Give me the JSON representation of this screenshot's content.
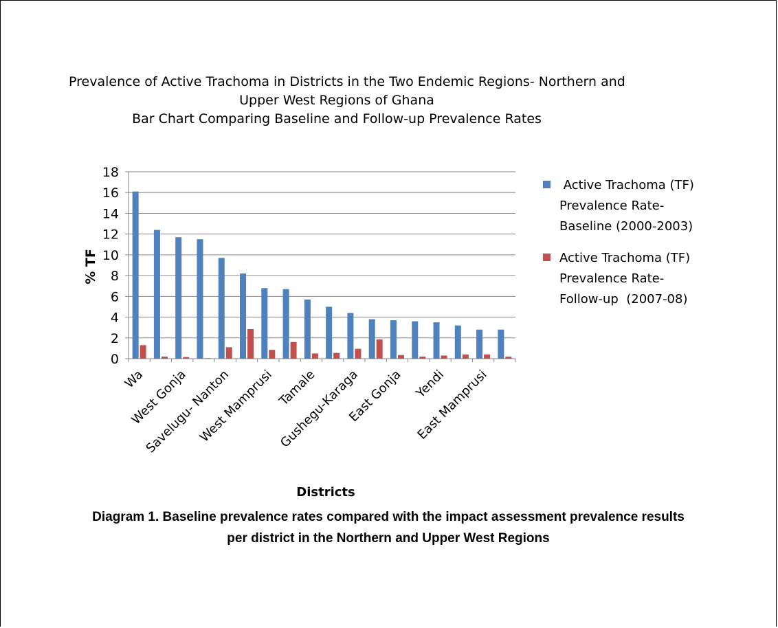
{
  "title_lines": [
    "Prevalence of Active Trachoma in Districts in the Two Endemic Regions- Northern and",
    "Upper West Regions of Ghana",
    "Bar Chart Comparing Baseline and Follow-up Prevalence Rates"
  ],
  "caption_lines": [
    "Diagram 1. Baseline prevalence rates compared with the impact assessment prevalence results",
    "per district in the Northern and Upper West Regions"
  ],
  "legend": {
    "items": [
      {
        "lines": [
          " Active Trachoma (TF)",
          "Prevalence Rate-",
          "Baseline (2000-2003)"
        ],
        "color": "#4F81BD"
      },
      {
        "lines": [
          "Active Trachoma (TF)",
          "Prevalence Rate-",
          "Follow-up  (2007-08)"
        ],
        "color": "#C0504D"
      }
    ]
  },
  "chart_data": {
    "type": "bar",
    "xlabel": "Districts",
    "ylabel": "% TF",
    "ylim": [
      0,
      18
    ],
    "yticks": [
      0,
      2,
      4,
      6,
      8,
      10,
      12,
      14,
      16,
      18
    ],
    "grid": true,
    "legend_position": "right",
    "category_labels_shown": [
      "Wa",
      "",
      "West Gonja",
      "",
      "Savelugu- Nanton",
      "",
      "West Mamprusi",
      "",
      "Tamale",
      "",
      "Gushegu-Karaga",
      "",
      "East Gonja",
      "",
      "Yendi",
      "",
      "East Mamprusi",
      ""
    ],
    "series": [
      {
        "values": [
          16.1,
          12.4,
          11.7,
          11.5,
          9.7,
          8.2,
          6.8,
          6.7,
          5.7,
          5.0,
          4.4,
          3.8,
          3.7,
          3.6,
          3.5,
          3.2,
          2.8,
          2.8
        ],
        "color": "#4F81BD"
      },
      {
        "values": [
          1.3,
          0.2,
          0.15,
          0.05,
          1.1,
          2.85,
          0.85,
          1.6,
          0.5,
          0.55,
          0.95,
          1.85,
          0.35,
          0.2,
          0.3,
          0.4,
          0.4,
          0.2
        ],
        "color": "#C0504D"
      }
    ]
  }
}
